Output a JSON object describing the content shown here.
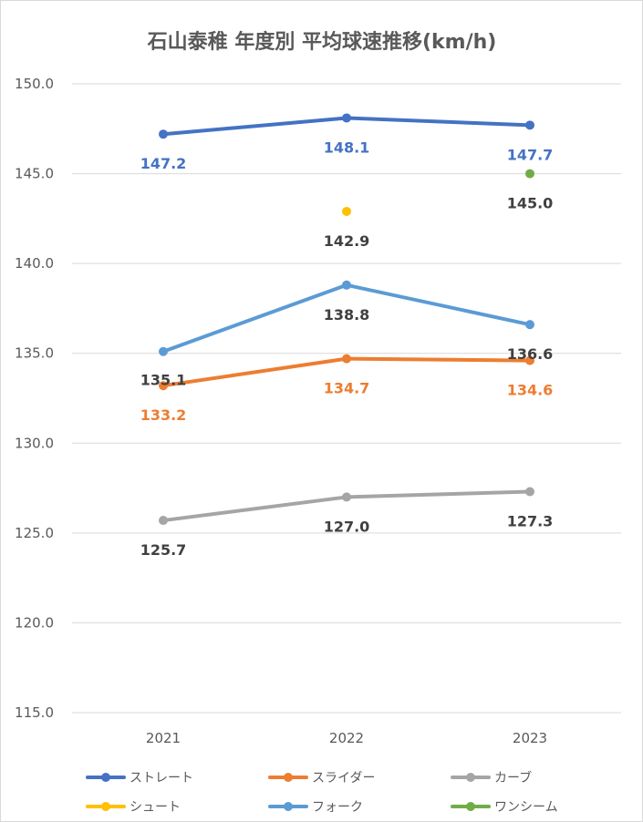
{
  "chart_data": {
    "type": "line",
    "title": "石山泰稚 年度別 平均球速推移(km/h)",
    "categories": [
      "2021",
      "2022",
      "2023"
    ],
    "ylim": [
      115.0,
      150.0
    ],
    "yticks": [
      "115.0",
      "120.0",
      "125.0",
      "130.0",
      "135.0",
      "140.0",
      "145.0",
      "150.0"
    ],
    "grid": true,
    "legend_position": "bottom",
    "series": [
      {
        "name": "ストレート",
        "color": "#4472c4",
        "values": [
          147.2,
          148.1,
          147.7
        ],
        "labels": [
          "147.2",
          "148.1",
          "147.7"
        ]
      },
      {
        "name": "スライダー",
        "color": "#ed7d31",
        "values": [
          133.2,
          134.7,
          134.6
        ],
        "labels": [
          "133.2",
          "134.7",
          "134.6"
        ]
      },
      {
        "name": "カーブ",
        "color": "#a5a5a5",
        "values": [
          125.7,
          127.0,
          127.3
        ],
        "labels": [
          "125.7",
          "127.0",
          "127.3"
        ]
      },
      {
        "name": "シュート",
        "color": "#ffc000",
        "values": [
          null,
          142.9,
          null
        ],
        "labels": [
          null,
          "142.9",
          null
        ]
      },
      {
        "name": "フォーク",
        "color": "#5b9bd5",
        "values": [
          135.1,
          138.8,
          136.6
        ],
        "labels": [
          "135.1",
          "138.8",
          "136.6"
        ]
      },
      {
        "name": "ワンシーム",
        "color": "#70ad47",
        "values": [
          null,
          null,
          145.0
        ],
        "labels": [
          null,
          null,
          "145.0"
        ]
      }
    ]
  }
}
